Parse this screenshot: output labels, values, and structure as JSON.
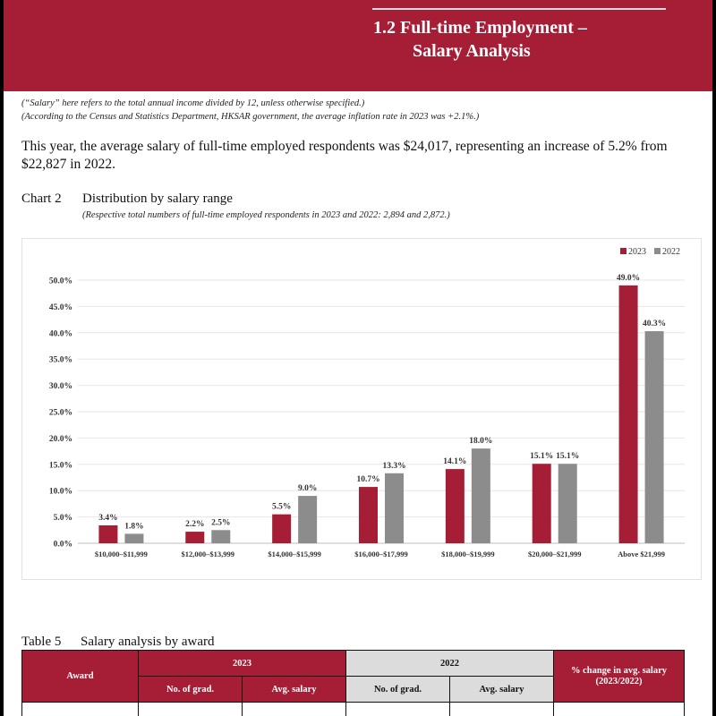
{
  "header": {
    "title_line1": "1.2 Full-time Employment –",
    "title_line2": "Salary Analysis",
    "band_color": "#a51e36"
  },
  "notes": {
    "line1": "(“Salary” here refers to the total annual income divided by 12, unless otherwise specified.)",
    "line2": "(According to the Census and Statistics Department, HKSAR government, the average inflation rate in 2023 was +2.1%.)"
  },
  "lead_text": "This year, the average salary of full-time employed respondents was $24,017, representing an increase of 5.2% from $22,827 in 2022.",
  "chart_caption": {
    "number": "Chart 2",
    "title": "Distribution by salary range",
    "subtitle": "(Respective total numbers of full-time employed respondents in 2023 and 2022: 2,894 and 2,872.)"
  },
  "chart_data": {
    "type": "bar",
    "categories": [
      "$10,000–$11,999",
      "$12,000–$13,999",
      "$14,000–$15,999",
      "$16,000–$17,999",
      "$18,000–$19,999",
      "$20,000–$21,999",
      "Above $21,999"
    ],
    "series": [
      {
        "name": "2023",
        "color": "#a51e36",
        "values": [
          3.4,
          2.2,
          5.5,
          10.7,
          14.1,
          15.1,
          49.0
        ],
        "labels": [
          "3.4%",
          "2.2%",
          "5.5%",
          "10.7%",
          "14.1%",
          "15.1%",
          "49.0%"
        ]
      },
      {
        "name": "2022",
        "color": "#8c8c8c",
        "values": [
          1.8,
          2.5,
          9.0,
          13.3,
          18.0,
          15.1,
          40.3
        ],
        "labels": [
          "1.8%",
          "2.5%",
          "9.0%",
          "13.3%",
          "18.0%",
          "15.1%",
          "40.3%"
        ]
      }
    ],
    "ylim": [
      0,
      50
    ],
    "yticks": [
      "0.0%",
      "5.0%",
      "10.0%",
      "15.0%",
      "20.0%",
      "25.0%",
      "30.0%",
      "35.0%",
      "40.0%",
      "45.0%",
      "50.0%"
    ],
    "grid": true,
    "legend": "top-right"
  },
  "table_caption": {
    "number": "Table 5",
    "title": "Salary analysis by award"
  },
  "table": {
    "award": "Award",
    "year_a": "2023",
    "year_b": "2022",
    "change": "% change in avg. salary (2023/2022)",
    "grads": "No. of grad.",
    "avg": "Avg. salary"
  }
}
